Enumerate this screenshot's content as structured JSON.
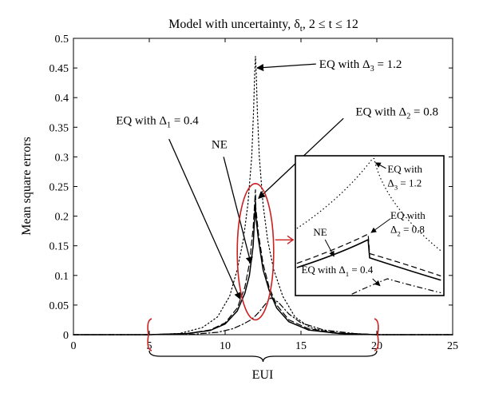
{
  "chart_data": {
    "type": "line",
    "title": "Model with uncertainty, δ",
    "title_sub": "t",
    "title_tail": ", 2 ≤ t ≤ 12",
    "xlabel": "EUI",
    "ylabel": "Mean square errors",
    "xlim": [
      0,
      25
    ],
    "ylim": [
      0,
      0.5
    ],
    "xticks": [
      "0",
      "5",
      "10",
      "15",
      "20",
      "25"
    ],
    "yticks": [
      "0",
      "0.05",
      "0.1",
      "0.15",
      "0.2",
      "0.25",
      "0.3",
      "0.35",
      "0.4",
      "0.45",
      "0.5"
    ],
    "grid": false,
    "series": [
      {
        "style": "dotted",
        "points": [
          [
            0,
            0
          ],
          [
            5,
            0
          ],
          [
            7,
            0.002
          ],
          [
            8.5,
            0.012
          ],
          [
            9.5,
            0.03
          ],
          [
            10.3,
            0.065
          ],
          [
            10.8,
            0.11
          ],
          [
            11.2,
            0.16
          ],
          [
            11.5,
            0.22
          ],
          [
            11.75,
            0.3
          ],
          [
            11.88,
            0.38
          ],
          [
            11.95,
            0.44
          ],
          [
            12,
            0.47
          ],
          [
            12.05,
            0.44
          ],
          [
            12.12,
            0.38
          ],
          [
            12.25,
            0.3
          ],
          [
            12.5,
            0.22
          ],
          [
            12.8,
            0.16
          ],
          [
            13.2,
            0.11
          ],
          [
            13.8,
            0.065
          ],
          [
            14.6,
            0.03
          ],
          [
            15.6,
            0.012
          ],
          [
            17,
            0.003
          ],
          [
            19,
            0.001
          ],
          [
            20,
            0
          ],
          [
            25,
            0
          ]
        ]
      },
      {
        "style": "dashed",
        "points": [
          [
            0,
            0
          ],
          [
            5,
            0
          ],
          [
            7.5,
            0.002
          ],
          [
            9,
            0.008
          ],
          [
            10,
            0.02
          ],
          [
            10.8,
            0.045
          ],
          [
            11.3,
            0.08
          ],
          [
            11.6,
            0.12
          ],
          [
            11.85,
            0.18
          ],
          [
            12,
            0.245
          ],
          [
            12.02,
            0.215
          ],
          [
            12.2,
            0.17
          ],
          [
            12.5,
            0.12
          ],
          [
            12.9,
            0.08
          ],
          [
            13.4,
            0.05
          ],
          [
            14.2,
            0.025
          ],
          [
            15.5,
            0.01
          ],
          [
            17.5,
            0.003
          ],
          [
            20,
            0
          ],
          [
            25,
            0
          ]
        ]
      },
      {
        "style": "solid",
        "points": [
          [
            0,
            0
          ],
          [
            5,
            0
          ],
          [
            7.5,
            0.002
          ],
          [
            9,
            0.007
          ],
          [
            10,
            0.018
          ],
          [
            10.8,
            0.04
          ],
          [
            11.3,
            0.07
          ],
          [
            11.6,
            0.1
          ],
          [
            11.85,
            0.15
          ],
          [
            12,
            0.225
          ],
          [
            12.02,
            0.2
          ],
          [
            12.2,
            0.16
          ],
          [
            12.5,
            0.11
          ],
          [
            12.9,
            0.075
          ],
          [
            13.4,
            0.045
          ],
          [
            14.2,
            0.022
          ],
          [
            15.5,
            0.008
          ],
          [
            17.5,
            0.002
          ],
          [
            20,
            0
          ],
          [
            25,
            0
          ]
        ]
      },
      {
        "style": "dashdot",
        "points": [
          [
            0,
            0
          ],
          [
            5,
            0
          ],
          [
            8,
            0.001
          ],
          [
            9.5,
            0.004
          ],
          [
            10.5,
            0.01
          ],
          [
            11.2,
            0.018
          ],
          [
            11.7,
            0.025
          ],
          [
            12,
            0.032
          ],
          [
            12.3,
            0.04
          ],
          [
            12.6,
            0.05
          ],
          [
            13,
            0.062
          ],
          [
            13.5,
            0.055
          ],
          [
            14.2,
            0.035
          ],
          [
            15,
            0.02
          ],
          [
            16.5,
            0.008
          ],
          [
            18.5,
            0.002
          ],
          [
            20,
            0
          ],
          [
            25,
            0
          ]
        ]
      }
    ],
    "annotations": [
      {
        "text": "EQ with Δ",
        "sub": "3",
        "tail": " = 1.2",
        "x": 16.2,
        "y": 0.45,
        "arrow_to": [
          12.1,
          0.45
        ]
      },
      {
        "text": "EQ with Δ",
        "sub": "2",
        "tail": " = 0.8",
        "x": 18.6,
        "y": 0.37,
        "arrow_from": [
          17.8,
          0.365
        ],
        "arrow_to": [
          12.2,
          0.23
        ]
      },
      {
        "text": "EQ with Δ",
        "sub": "1",
        "tail": " = 0.4",
        "x": 2.8,
        "y": 0.355,
        "arrow_from": [
          6.3,
          0.33
        ],
        "arrow_to": [
          11.0,
          0.06
        ]
      },
      {
        "text": "NE",
        "x": 9.1,
        "y": 0.315,
        "arrow_from": [
          9.9,
          0.3
        ],
        "arrow_to": [
          11.7,
          0.12
        ]
      }
    ],
    "brace_range": [
      5,
      20
    ],
    "highlight_ellipse": {
      "cx": 12.0,
      "cy": 0.14,
      "rx": 1.2,
      "ry": 0.115
    },
    "inset": {
      "labels": [
        {
          "text": "EQ with",
          "line2": "Δ",
          "sub": "3",
          "tail": " = 1.2"
        },
        {
          "text": "EQ with",
          "line2": "Δ",
          "sub": "2",
          "tail": " = 0.8"
        },
        {
          "text": "NE"
        },
        {
          "text": "EQ with Δ",
          "sub": "1",
          "tail": " = 0.4"
        }
      ]
    },
    "accent_color": "#cc1f1f"
  }
}
